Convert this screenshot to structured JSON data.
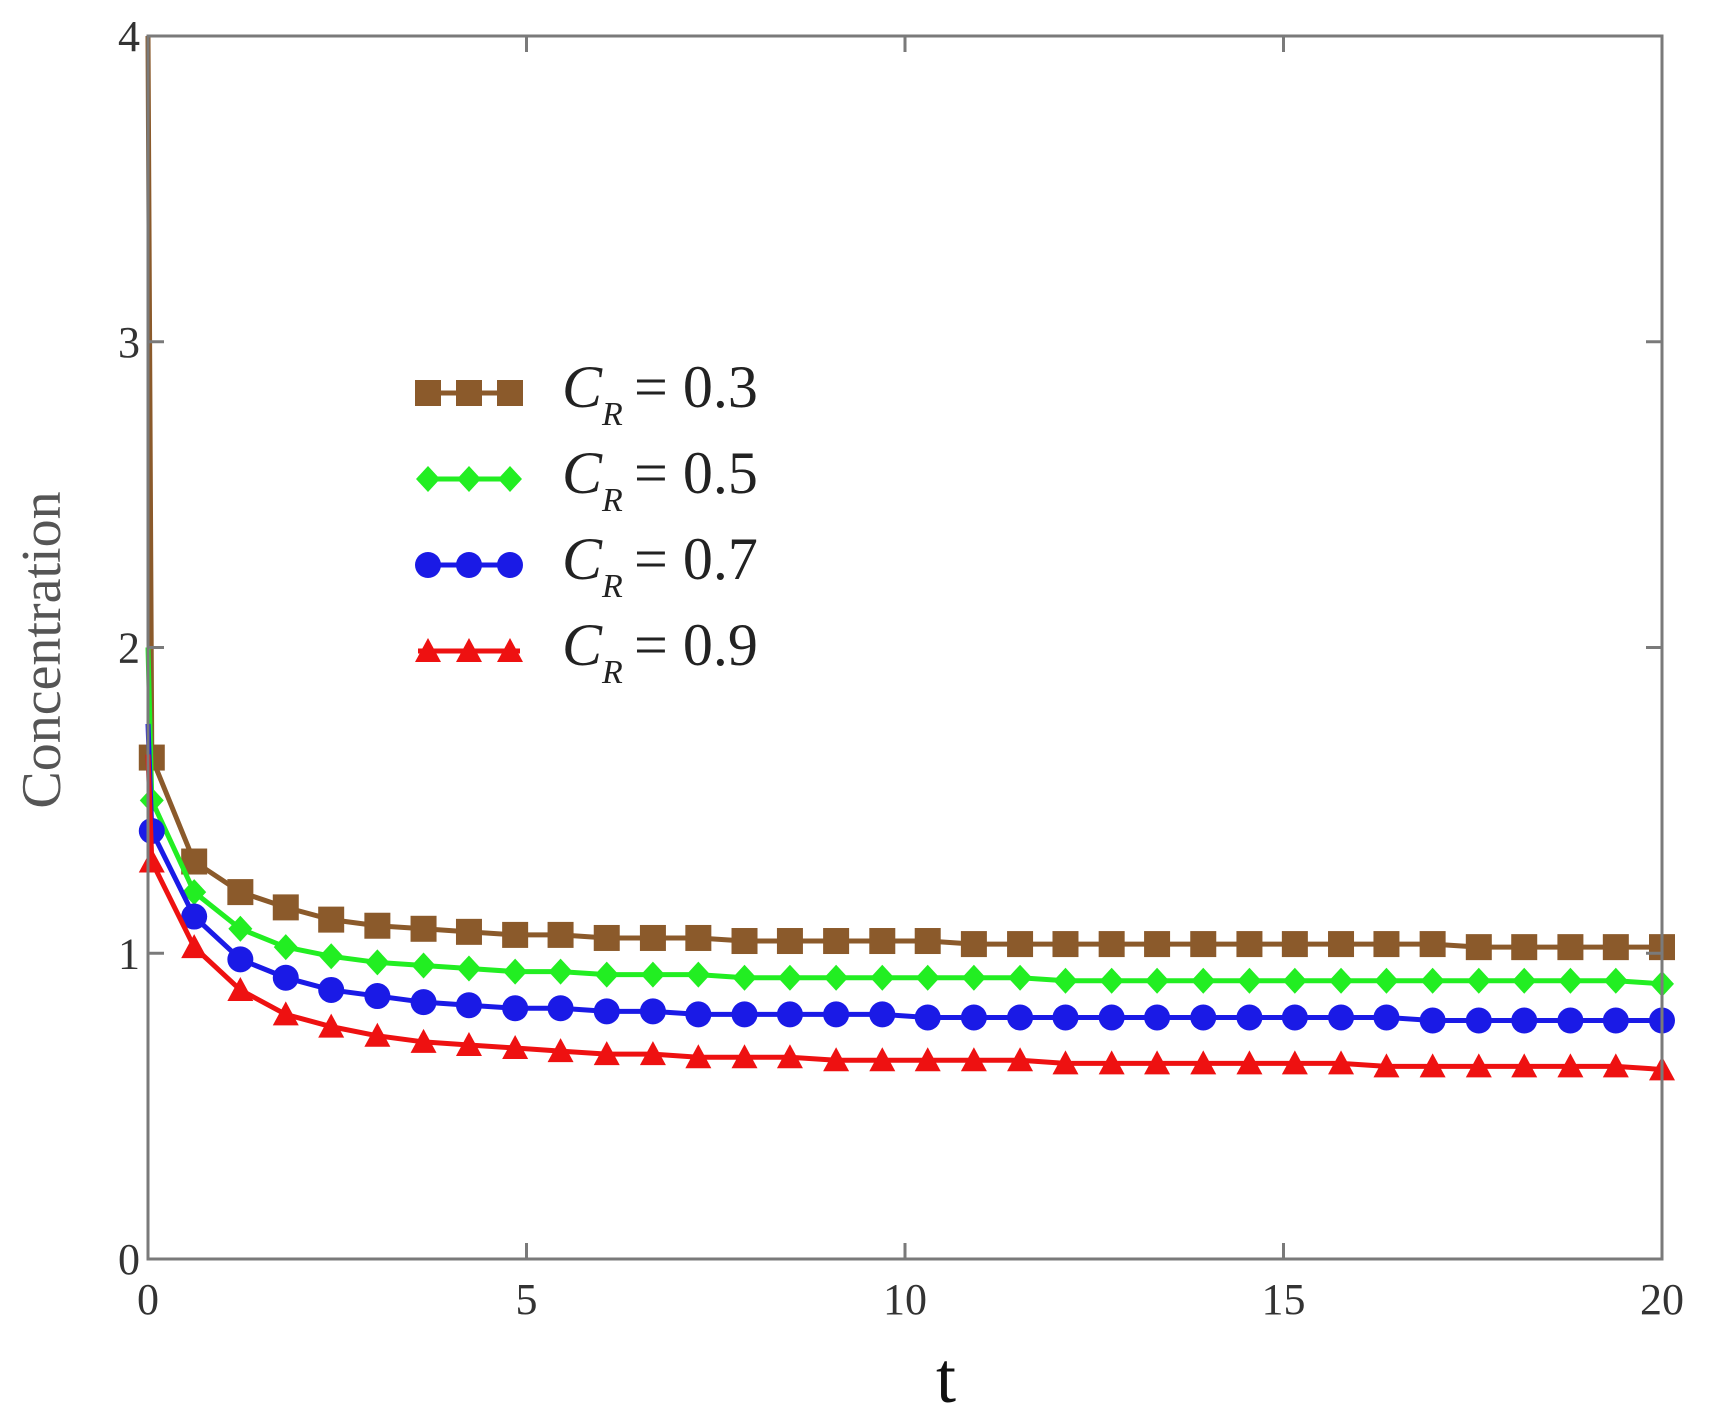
{
  "chart_data": {
    "type": "line",
    "title": "",
    "xlabel": "t",
    "ylabel": "Concentration",
    "xlim": [
      0,
      20
    ],
    "ylim": [
      0,
      4
    ],
    "xticks": [
      "0",
      "5",
      "10",
      "15",
      "20"
    ],
    "yticks": [
      "0",
      "1",
      "2",
      "3",
      "4"
    ],
    "grid": false,
    "legend_position": "upper-left",
    "x": [
      0,
      0.61,
      1.22,
      1.82,
      2.42,
      3.03,
      3.64,
      4.24,
      4.85,
      5.45,
      6.06,
      6.67,
      7.27,
      7.88,
      8.48,
      9.09,
      9.7,
      10.3,
      10.91,
      11.52,
      12.12,
      12.73,
      13.33,
      13.94,
      14.55,
      15.15,
      15.76,
      16.36,
      16.97,
      17.58,
      18.18,
      18.79,
      19.39,
      20.0
    ],
    "series": [
      {
        "name_prefix": "C",
        "name_sub": "R",
        "name_value": "= 0.3",
        "color": "#8B5A2B",
        "marker": "square",
        "y0": 4.0,
        "values": [
          1.64,
          1.3,
          1.2,
          1.15,
          1.11,
          1.09,
          1.08,
          1.07,
          1.06,
          1.06,
          1.05,
          1.05,
          1.05,
          1.04,
          1.04,
          1.04,
          1.04,
          1.04,
          1.03,
          1.03,
          1.03,
          1.03,
          1.03,
          1.03,
          1.03,
          1.03,
          1.03,
          1.03,
          1.03,
          1.02,
          1.02,
          1.02,
          1.02,
          1.02
        ]
      },
      {
        "name_prefix": "C",
        "name_sub": "R",
        "name_value": "= 0.5",
        "color": "#22EE22",
        "marker": "diamond",
        "y0": 2.0,
        "values": [
          1.5,
          1.2,
          1.08,
          1.02,
          0.99,
          0.97,
          0.96,
          0.95,
          0.94,
          0.94,
          0.93,
          0.93,
          0.93,
          0.92,
          0.92,
          0.92,
          0.92,
          0.92,
          0.92,
          0.92,
          0.91,
          0.91,
          0.91,
          0.91,
          0.91,
          0.91,
          0.91,
          0.91,
          0.91,
          0.91,
          0.91,
          0.91,
          0.91,
          0.9
        ]
      },
      {
        "name_prefix": "C",
        "name_sub": "R",
        "name_value": "= 0.7",
        "color": "#1A1AE6",
        "marker": "circle",
        "y0": 1.75,
        "values": [
          1.4,
          1.12,
          0.98,
          0.92,
          0.88,
          0.86,
          0.84,
          0.83,
          0.82,
          0.82,
          0.81,
          0.81,
          0.8,
          0.8,
          0.8,
          0.8,
          0.8,
          0.79,
          0.79,
          0.79,
          0.79,
          0.79,
          0.79,
          0.79,
          0.79,
          0.79,
          0.79,
          0.79,
          0.78,
          0.78,
          0.78,
          0.78,
          0.78,
          0.78
        ]
      },
      {
        "name_prefix": "C",
        "name_sub": "R",
        "name_value": "= 0.9",
        "color": "#EE1111",
        "marker": "triangle",
        "y0": 1.65,
        "values": [
          1.3,
          1.02,
          0.88,
          0.8,
          0.76,
          0.73,
          0.71,
          0.7,
          0.69,
          0.68,
          0.67,
          0.67,
          0.66,
          0.66,
          0.66,
          0.65,
          0.65,
          0.65,
          0.65,
          0.65,
          0.64,
          0.64,
          0.64,
          0.64,
          0.64,
          0.64,
          0.64,
          0.63,
          0.63,
          0.63,
          0.63,
          0.63,
          0.63,
          0.62
        ]
      }
    ]
  }
}
